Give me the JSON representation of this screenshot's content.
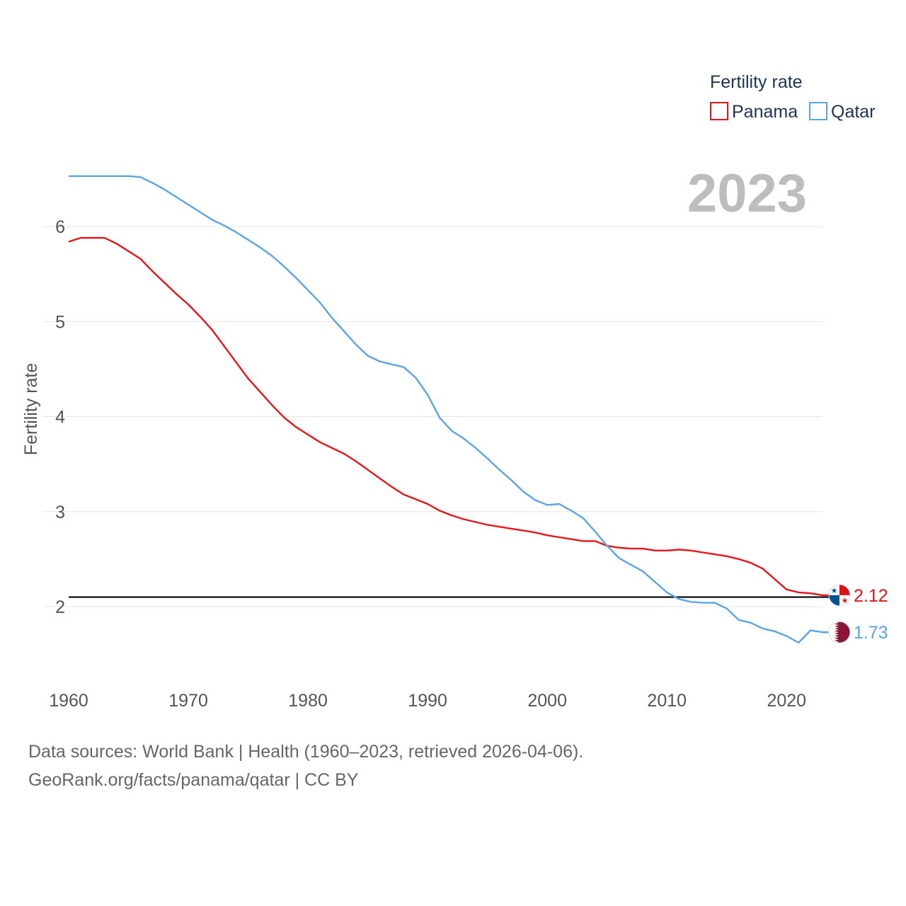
{
  "chart_data": {
    "type": "line",
    "current_year": "2023",
    "legend_title": "Fertility rate",
    "ylabel": "Fertility rate",
    "xlabel": "",
    "xlim": [
      1960,
      2023
    ],
    "ylim": [
      1.5,
      6.5
    ],
    "xticks": [
      1960,
      1970,
      1980,
      1990,
      2000,
      2010,
      2020
    ],
    "yticks": [
      2,
      3,
      4,
      5,
      6
    ],
    "reference_line": 2.1,
    "series": [
      {
        "name": "Panama",
        "color": "#e8141a",
        "end_label": "2.12",
        "flag": "panama-flag",
        "x": [
          1960,
          1961,
          1962,
          1963,
          1964,
          1965,
          1966,
          1967,
          1968,
          1969,
          1970,
          1971,
          1972,
          1973,
          1974,
          1975,
          1976,
          1977,
          1978,
          1979,
          1980,
          1981,
          1982,
          1983,
          1984,
          1985,
          1986,
          1987,
          1988,
          1989,
          1990,
          1991,
          1992,
          1993,
          1994,
          1995,
          1996,
          1997,
          1998,
          1999,
          2000,
          2001,
          2002,
          2003,
          2004,
          2005,
          2006,
          2007,
          2008,
          2009,
          2010,
          2011,
          2012,
          2013,
          2014,
          2015,
          2016,
          2017,
          2018,
          2019,
          2020,
          2021,
          2022,
          2023
        ],
        "values": [
          5.84,
          5.88,
          5.88,
          5.88,
          5.82,
          5.74,
          5.66,
          5.53,
          5.41,
          5.29,
          5.18,
          5.05,
          4.91,
          4.74,
          4.57,
          4.4,
          4.26,
          4.12,
          3.99,
          3.89,
          3.81,
          3.73,
          3.67,
          3.61,
          3.53,
          3.44,
          3.35,
          3.26,
          3.18,
          3.13,
          3.08,
          3.01,
          2.96,
          2.92,
          2.89,
          2.86,
          2.84,
          2.82,
          2.8,
          2.78,
          2.75,
          2.73,
          2.71,
          2.69,
          2.69,
          2.64,
          2.62,
          2.61,
          2.61,
          2.59,
          2.59,
          2.6,
          2.59,
          2.57,
          2.55,
          2.53,
          2.5,
          2.46,
          2.4,
          2.29,
          2.18,
          2.15,
          2.14,
          2.12
        ]
      },
      {
        "name": "Qatar",
        "color": "#5aa5e6",
        "end_label": "1.73",
        "flag": "qatar-flag",
        "x": [
          1960,
          1961,
          1962,
          1963,
          1964,
          1965,
          1966,
          1967,
          1968,
          1969,
          1970,
          1971,
          1972,
          1973,
          1974,
          1975,
          1976,
          1977,
          1978,
          1979,
          1980,
          1981,
          1982,
          1983,
          1984,
          1985,
          1986,
          1987,
          1988,
          1989,
          1990,
          1991,
          1992,
          1993,
          1994,
          1995,
          1996,
          1997,
          1998,
          1999,
          2000,
          2001,
          2002,
          2003,
          2004,
          2005,
          2006,
          2007,
          2008,
          2009,
          2010,
          2011,
          2012,
          2013,
          2014,
          2015,
          2016,
          2017,
          2018,
          2019,
          2020,
          2021,
          2022,
          2023
        ],
        "values": [
          6.53,
          6.53,
          6.53,
          6.53,
          6.53,
          6.53,
          6.52,
          6.46,
          6.39,
          6.31,
          6.23,
          6.15,
          6.07,
          6.01,
          5.94,
          5.86,
          5.78,
          5.69,
          5.58,
          5.46,
          5.33,
          5.2,
          5.04,
          4.9,
          4.76,
          4.64,
          4.58,
          4.55,
          4.52,
          4.41,
          4.23,
          3.99,
          3.85,
          3.77,
          3.67,
          3.56,
          3.44,
          3.33,
          3.21,
          3.12,
          3.07,
          3.08,
          3.01,
          2.93,
          2.79,
          2.64,
          2.51,
          2.44,
          2.37,
          2.26,
          2.15,
          2.08,
          2.05,
          2.04,
          2.04,
          1.98,
          1.86,
          1.83,
          1.77,
          1.74,
          1.69,
          1.62,
          1.75,
          1.73
        ]
      }
    ]
  },
  "footer": {
    "line1": "Data sources: World Bank | Health (1960–2023, retrieved 2026-04-06).",
    "line2": "GeoRank.org/facts/panama/qatar | CC BY"
  }
}
